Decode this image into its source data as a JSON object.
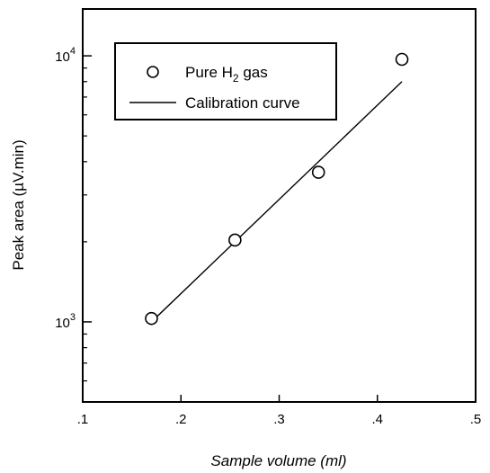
{
  "chart_data": {
    "type": "scatter",
    "title": "",
    "xlabel": "Sample volume (ml)",
    "ylabel": "Peak area (µV.min)",
    "xlim": [
      0.1,
      0.5
    ],
    "ylim": [
      500,
      15000
    ],
    "yscale": "log",
    "grid": false,
    "legend_position": "top-left",
    "x_ticks": [
      {
        "value": 0.1,
        "label": ".1"
      },
      {
        "value": 0.2,
        "label": ".2"
      },
      {
        "value": 0.3,
        "label": ".3"
      },
      {
        "value": 0.4,
        "label": ".4"
      },
      {
        "value": 0.5,
        "label": ".5"
      }
    ],
    "y_major_ticks": [
      {
        "value": 1000,
        "base": "10",
        "exp": "3"
      },
      {
        "value": 10000,
        "base": "10",
        "exp": "4"
      }
    ],
    "y_minor_ticks": [
      500,
      600,
      700,
      800,
      900,
      2000,
      3000,
      4000,
      5000,
      6000,
      7000,
      8000,
      9000
    ],
    "series": [
      {
        "name": "Pure H₂ gas",
        "name_parts": [
          "Pure H",
          "2",
          " gas"
        ],
        "kind": "scatter",
        "marker": "open-circle",
        "x": [
          0.17,
          0.255,
          0.34,
          0.425
        ],
        "y": [
          1030,
          2030,
          3650,
          9700
        ]
      },
      {
        "name": "Calibration curve",
        "kind": "line",
        "x": [
          0.17,
          0.425
        ],
        "y": [
          1000,
          8000
        ]
      }
    ]
  }
}
